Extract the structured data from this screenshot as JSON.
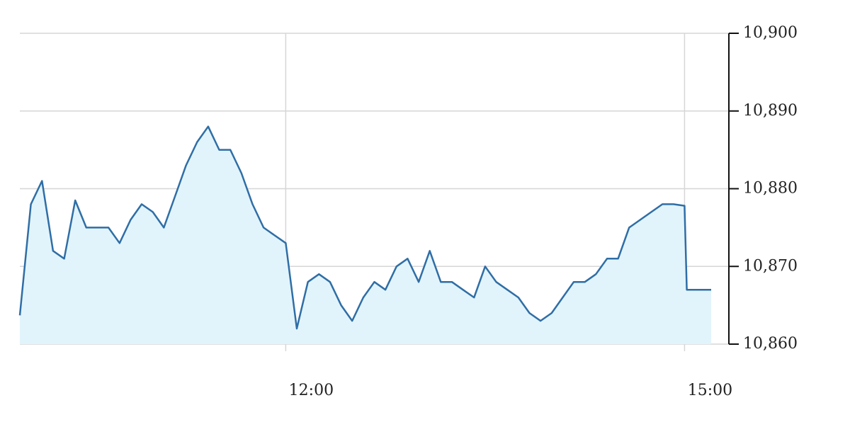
{
  "chart_data": {
    "type": "area",
    "x": [
      600,
      605,
      610,
      615,
      620,
      625,
      630,
      635,
      640,
      645,
      650,
      655,
      660,
      665,
      670,
      675,
      680,
      685,
      690,
      695,
      700,
      705,
      710,
      715,
      720,
      725,
      730,
      735,
      740,
      745,
      750,
      755,
      760,
      765,
      770,
      775,
      780,
      785,
      790,
      795,
      800,
      805,
      810,
      815,
      820,
      825,
      830,
      835,
      840,
      845,
      850,
      855,
      860,
      865,
      870,
      875,
      880,
      885,
      890,
      895,
      900,
      901,
      905,
      910,
      912
    ],
    "series": [
      {
        "color": "#2f6ea6",
        "fill": "#e2f4fb",
        "values": [
          10863.7,
          10878,
          10881,
          10872,
          10871,
          10878.5,
          10875,
          10875,
          10875,
          10873,
          10876,
          10878,
          10877,
          10875,
          10879,
          10883,
          10886,
          10888,
          10885,
          10885,
          10882,
          10878,
          10875,
          10874,
          10873,
          10862,
          10868,
          10869,
          10868,
          10865,
          10863,
          10866,
          10868,
          10867,
          10870,
          10871,
          10868,
          10872,
          10868,
          10868,
          10867,
          10866,
          10870,
          10868,
          10867,
          10866,
          10864,
          10863,
          10864,
          10866,
          10868,
          10868,
          10869,
          10871,
          10871,
          10875,
          10876,
          10877,
          10878,
          10878,
          10877.8,
          10867,
          10867,
          10867,
          10867
        ]
      }
    ],
    "xlim": [
      600,
      920
    ],
    "xticks": [
      {
        "value": 720,
        "label": "12:00"
      },
      {
        "value": 900,
        "label": "15:00"
      }
    ],
    "ylim": [
      10860,
      10900
    ],
    "yticks": [
      {
        "value": 10860,
        "label": "10,860"
      },
      {
        "value": 10870,
        "label": "10,870"
      },
      {
        "value": 10880,
        "label": "10,880"
      },
      {
        "value": 10890,
        "label": "10,890"
      },
      {
        "value": 10900,
        "label": "10,900"
      }
    ],
    "grid": true
  }
}
